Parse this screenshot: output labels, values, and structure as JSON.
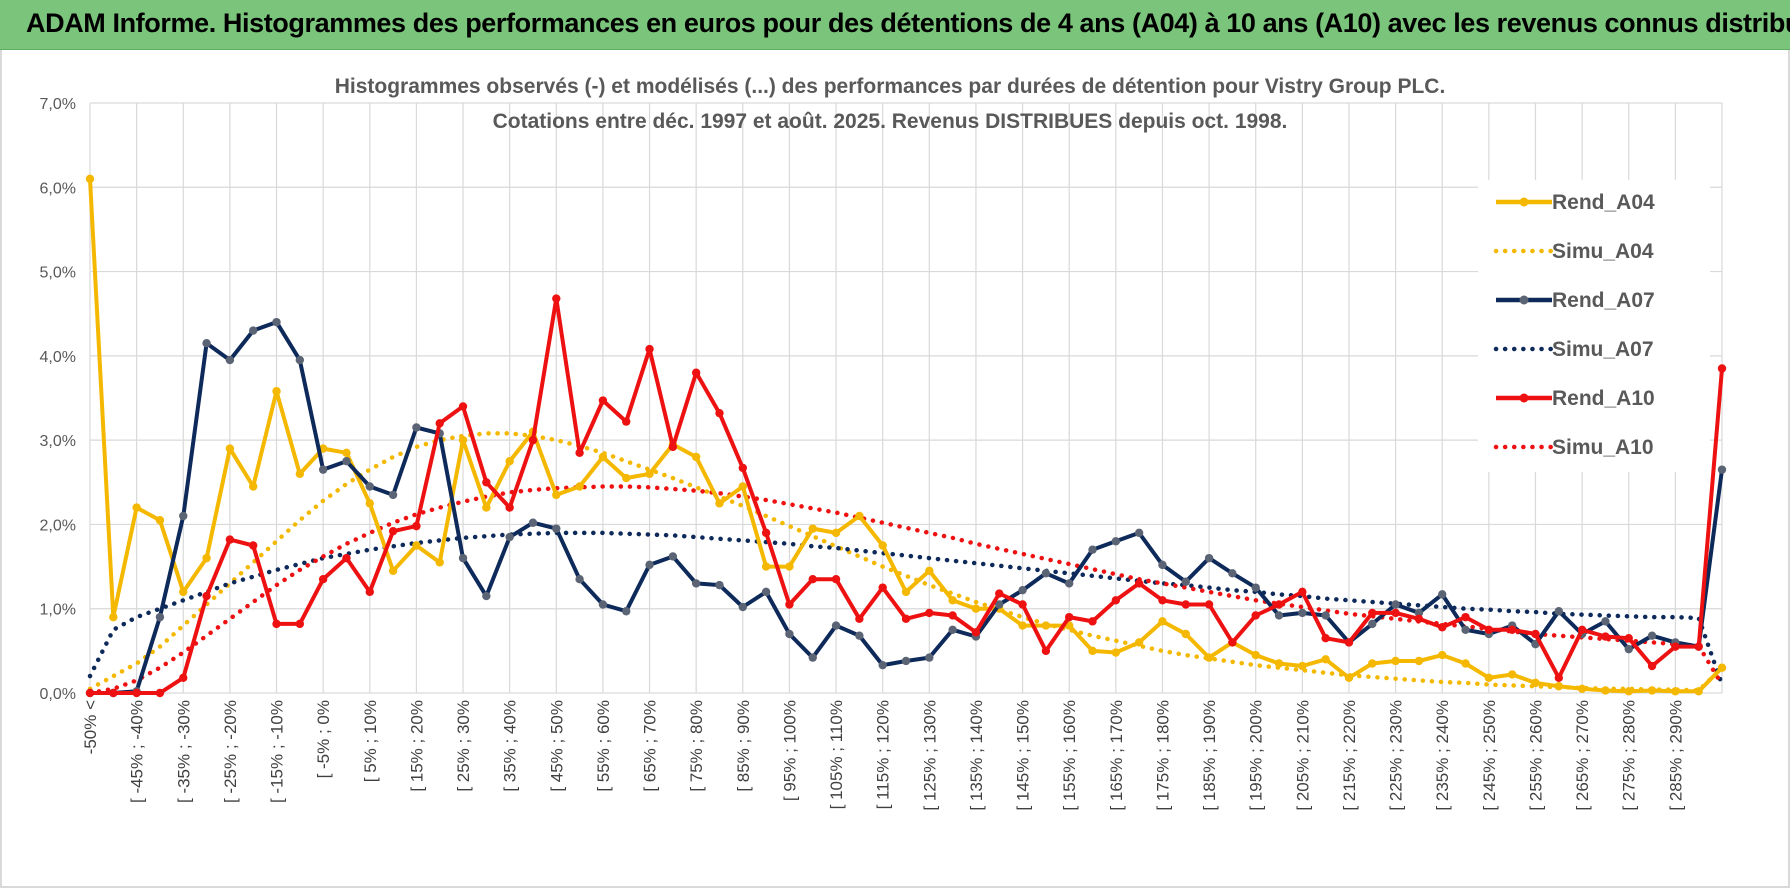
{
  "banner": {
    "title": "ADAM Informe. Histogrammes des performances en euros pour des détentions de 4 ans (A04) à 10 ans (A10) avec les revenus connus distribués"
  },
  "colors": {
    "banner_bg": "#7ac47b",
    "A04": "#f5b800",
    "A07": "#0e2a5a",
    "A10": "#ee1111",
    "grid": "#d9d9d9"
  },
  "chart_data": {
    "type": "line",
    "title": [
      "Histogrammes observés (-) et modélisés (...) des performances par durées de détention pour Vistry Group PLC.",
      "Cotations entre déc. 1997 et août. 2025. Revenus DISTRIBUES depuis oct. 1998."
    ],
    "ylim": [
      0,
      7
    ],
    "yticks": [
      "0,0%",
      "1,0%",
      "2,0%",
      "3,0%",
      "4,0%",
      "5,0%",
      "6,0%",
      "7,0%"
    ],
    "xtick_labels": [
      "-50% <",
      "[ -45% ; -40%",
      "[ -35% ; -30%",
      "[ -25% ; -20%",
      "[ -15% ; -10%",
      "[ -5% ; 0%",
      "[ 5% ; 10%",
      "[ 15% ; 20%",
      "[ 25% ; 30%",
      "[ 35% ; 40%",
      "[ 45% ; 50%",
      "[ 55% ; 60%",
      "[ 65% ; 70%",
      "[ 75% ; 80%",
      "[ 85% ; 90%",
      "[ 95% ; 100%",
      "[ 105% ; 110%",
      "[ 115% ; 120%",
      "[ 125% ; 130%",
      "[ 135% ; 140%",
      "[ 145% ; 150%",
      "[ 155% ; 160%",
      "[ 165% ; 170%",
      "[ 175% ; 180%",
      "[ 185% ; 190%",
      "[ 195% ; 200%",
      "[ 205% ; 210%",
      "[ 215% ; 220%",
      "[ 225% ; 230%",
      "[ 235% ; 240%",
      "[ 245% ; 250%",
      "[ 255% ; 260%",
      "[ 265% ; 270%",
      "[ 275% ; 280%",
      "[ 285% ; 290%"
    ],
    "grid": true,
    "legend_position": "right",
    "series": [
      {
        "name": "Rend_A04",
        "style": "solid",
        "color": "#f5b800",
        "values": [
          6.1,
          0.9,
          2.2,
          2.05,
          1.2,
          1.6,
          2.9,
          2.45,
          3.58,
          2.6,
          2.9,
          2.85,
          2.25,
          1.45,
          1.75,
          1.55,
          3.0,
          2.2,
          2.75,
          3.1,
          2.35,
          2.45,
          2.8,
          2.55,
          2.6,
          2.95,
          2.8,
          2.25,
          2.45,
          1.5,
          1.5,
          1.95,
          1.9,
          2.1,
          1.75,
          1.2,
          1.45,
          1.1,
          1.0,
          1.0,
          0.8,
          0.8,
          0.8,
          0.5,
          0.48,
          0.6,
          0.85,
          0.7,
          0.42,
          0.6,
          0.45,
          0.35,
          0.32,
          0.4,
          0.18,
          0.35,
          0.38,
          0.38,
          0.45,
          0.35,
          0.18,
          0.22,
          0.12,
          0.08,
          0.05,
          0.03,
          0.02,
          0.03,
          0.02,
          0.02,
          0.3
        ]
      },
      {
        "name": "Simu_A04",
        "style": "dotted",
        "color": "#f5b800",
        "values": [
          0.05,
          0.2,
          0.35,
          0.55,
          0.8,
          1.05,
          1.3,
          1.55,
          1.8,
          2.05,
          2.28,
          2.48,
          2.65,
          2.8,
          2.92,
          3.0,
          3.05,
          3.08,
          3.08,
          3.05,
          3.0,
          2.93,
          2.85,
          2.75,
          2.65,
          2.55,
          2.44,
          2.33,
          2.22,
          2.1,
          1.98,
          1.86,
          1.74,
          1.62,
          1.5,
          1.39,
          1.28,
          1.18,
          1.08,
          0.99,
          0.9,
          0.82,
          0.75,
          0.68,
          0.62,
          0.56,
          0.5,
          0.45,
          0.41,
          0.37,
          0.33,
          0.3,
          0.27,
          0.24,
          0.21,
          0.19,
          0.17,
          0.15,
          0.13,
          0.12,
          0.1,
          0.09,
          0.08,
          0.07,
          0.06,
          0.05,
          0.05,
          0.04,
          0.04,
          0.03,
          0.3
        ]
      },
      {
        "name": "Rend_A07",
        "style": "solid",
        "color": "#0e2a5a",
        "values": [
          0.0,
          0.0,
          0.02,
          0.9,
          2.1,
          4.15,
          3.95,
          4.3,
          4.4,
          3.95,
          2.65,
          2.75,
          2.45,
          2.35,
          3.15,
          3.08,
          1.6,
          1.15,
          1.85,
          2.02,
          1.95,
          1.35,
          1.05,
          0.97,
          1.52,
          1.62,
          1.3,
          1.28,
          1.02,
          1.2,
          0.7,
          0.42,
          0.8,
          0.68,
          0.33,
          0.38,
          0.42,
          0.75,
          0.67,
          1.05,
          1.22,
          1.42,
          1.3,
          1.7,
          1.8,
          1.9,
          1.52,
          1.32,
          1.6,
          1.42,
          1.25,
          0.92,
          0.95,
          0.92,
          0.6,
          0.82,
          1.05,
          0.95,
          1.17,
          0.75,
          0.7,
          0.8,
          0.58,
          0.97,
          0.7,
          0.85,
          0.52,
          0.68,
          0.6,
          0.55,
          2.65
        ]
      },
      {
        "name": "Simu_A07",
        "style": "dotted",
        "color": "#0e2a5a",
        "values": [
          0.2,
          0.75,
          0.9,
          1.0,
          1.1,
          1.2,
          1.3,
          1.38,
          1.46,
          1.53,
          1.6,
          1.65,
          1.7,
          1.74,
          1.78,
          1.81,
          1.84,
          1.86,
          1.88,
          1.89,
          1.9,
          1.9,
          1.9,
          1.89,
          1.88,
          1.87,
          1.85,
          1.83,
          1.81,
          1.79,
          1.77,
          1.74,
          1.72,
          1.69,
          1.66,
          1.63,
          1.6,
          1.57,
          1.54,
          1.51,
          1.48,
          1.45,
          1.42,
          1.39,
          1.36,
          1.33,
          1.3,
          1.28,
          1.25,
          1.22,
          1.2,
          1.17,
          1.15,
          1.12,
          1.1,
          1.08,
          1.06,
          1.04,
          1.02,
          1.0,
          0.99,
          0.97,
          0.96,
          0.94,
          0.93,
          0.92,
          0.91,
          0.9,
          0.9,
          0.89,
          0.1
        ]
      },
      {
        "name": "Rend_A10",
        "style": "solid",
        "color": "#ee1111",
        "values": [
          0.0,
          0.0,
          0.0,
          0.0,
          0.18,
          1.15,
          1.82,
          1.75,
          0.82,
          0.82,
          1.35,
          1.6,
          1.2,
          1.92,
          1.98,
          3.2,
          3.4,
          2.5,
          2.2,
          3.0,
          4.68,
          2.85,
          3.47,
          3.22,
          4.08,
          2.92,
          3.8,
          3.32,
          2.67,
          1.9,
          1.05,
          1.35,
          1.35,
          0.88,
          1.25,
          0.88,
          0.95,
          0.92,
          0.72,
          1.18,
          1.05,
          0.5,
          0.9,
          0.85,
          1.1,
          1.3,
          1.1,
          1.05,
          1.05,
          0.6,
          0.92,
          1.05,
          1.2,
          0.65,
          0.6,
          0.95,
          0.95,
          0.88,
          0.78,
          0.9,
          0.75,
          0.75,
          0.7,
          0.18,
          0.75,
          0.67,
          0.65,
          0.32,
          0.55,
          0.55,
          3.85
        ]
      },
      {
        "name": "Simu_A10",
        "style": "dotted",
        "color": "#ee1111",
        "values": [
          0.0,
          0.05,
          0.15,
          0.3,
          0.48,
          0.68,
          0.88,
          1.08,
          1.28,
          1.46,
          1.62,
          1.77,
          1.9,
          2.02,
          2.12,
          2.2,
          2.27,
          2.33,
          2.38,
          2.41,
          2.43,
          2.44,
          2.45,
          2.45,
          2.44,
          2.42,
          2.4,
          2.37,
          2.33,
          2.29,
          2.24,
          2.19,
          2.14,
          2.08,
          2.02,
          1.96,
          1.9,
          1.84,
          1.77,
          1.71,
          1.65,
          1.59,
          1.53,
          1.47,
          1.41,
          1.35,
          1.3,
          1.25,
          1.2,
          1.15,
          1.1,
          1.06,
          1.02,
          0.98,
          0.94,
          0.91,
          0.88,
          0.85,
          0.82,
          0.79,
          0.76,
          0.73,
          0.7,
          0.68,
          0.66,
          0.64,
          0.62,
          0.6,
          0.58,
          0.56,
          0.1
        ]
      }
    ]
  }
}
